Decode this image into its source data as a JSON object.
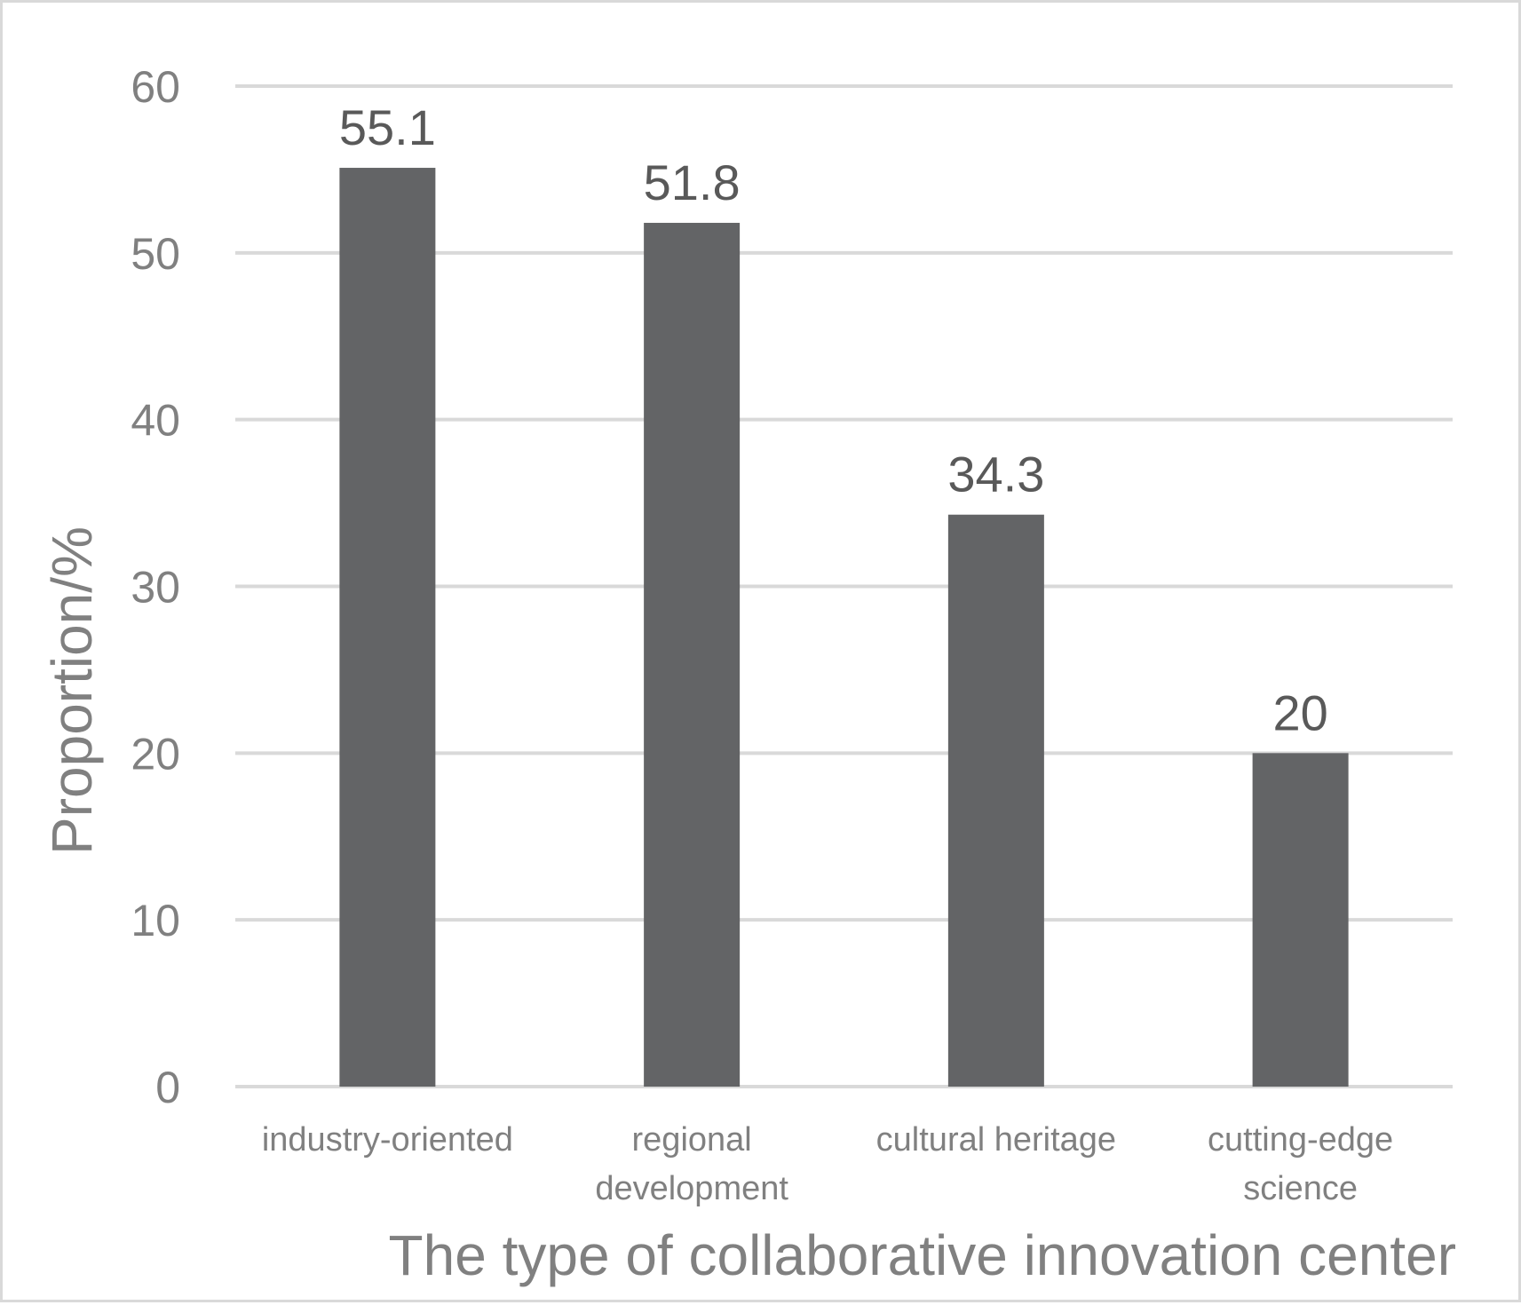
{
  "chart_data": {
    "type": "bar",
    "categories": [
      [
        "industry-oriented"
      ],
      [
        "regional",
        "development"
      ],
      [
        "cultural heritage"
      ],
      [
        "cutting-edge",
        "science"
      ]
    ],
    "values": [
      55.1,
      51.8,
      34.3,
      20
    ],
    "value_labels": [
      "55.1",
      "51.8",
      "34.3",
      "20"
    ],
    "title": "",
    "xlabel": "The type of collaborative innovation center",
    "ylabel": "Proportion/%",
    "ylim": [
      0,
      60
    ],
    "yticks": [
      0,
      10,
      20,
      30,
      40,
      50,
      60
    ],
    "grid": true,
    "legend": "none",
    "colors": {
      "bar": "#636466",
      "grid": "#d9d9d9",
      "frame": "#d9d9d9",
      "tick_text": "#808080",
      "value_text": "#595959"
    }
  }
}
